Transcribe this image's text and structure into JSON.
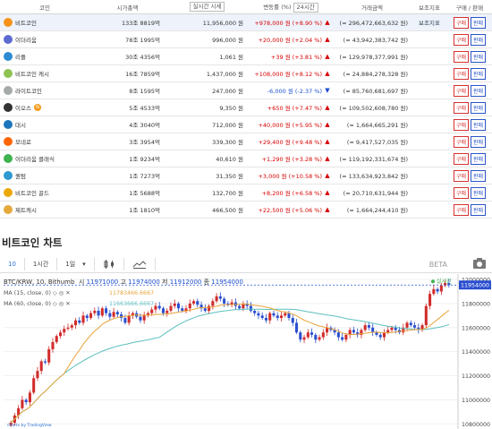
{
  "table": {
    "headers": {
      "coin": "코인",
      "cap": "시가총액",
      "price_sel": "실시간 시세",
      "change": "변동률 (%)",
      "period_sel": "24시간",
      "volume": "거래금액",
      "aux": "보조지표",
      "trade": "구매 / 판매"
    },
    "rows": [
      {
        "name": "비트코인",
        "cap": "133조 8819억",
        "price": "11,956,000 원",
        "change": "+978,000 원 (+8.90 %)",
        "dir": "up",
        "volume": "(≈ 296,472,663,632 원)",
        "aux": "보조지표",
        "icon_color": "#f7931a"
      },
      {
        "name": "이더리움",
        "cap": "78조 1995억",
        "price": "996,000 원",
        "change": "+20,000 원 (+2.04 %)",
        "dir": "up",
        "volume": "(≈ 43,942,383,742 원)",
        "aux": "",
        "icon_color": "#5b6bd1"
      },
      {
        "name": "리플",
        "cap": "30조 4356억",
        "price": "1,061 원",
        "change": "+39 원 (+3.81 %)",
        "dir": "up",
        "volume": "(≈ 129,978,377,991 원)",
        "aux": "",
        "icon_color": "#2d8bd2"
      },
      {
        "name": "비트코인 캐시",
        "cap": "16조 7859억",
        "price": "1,437,000 원",
        "change": "+108,000 원 (+8.12 %)",
        "dir": "up",
        "volume": "(≈ 24,884,278,328 원)",
        "aux": "",
        "icon_color": "#8dc351"
      },
      {
        "name": "라이트코인",
        "cap": "8조 1595억",
        "price": "247,000 원",
        "change": "-6,000 원 (-2.37 %)",
        "dir": "down",
        "volume": "(≈ 85,760,681,697 원)",
        "aux": "",
        "icon_color": "#a6a9aa"
      },
      {
        "name": "이오스",
        "cap": "5조 4533억",
        "price": "9,350 원",
        "change": "+650 원 (+7.47 %)",
        "dir": "up",
        "volume": "(≈ 109,502,608,780 원)",
        "aux": "",
        "icon_color": "#333333",
        "badge": "N"
      },
      {
        "name": "대시",
        "cap": "4조 3040억",
        "price": "712,000 원",
        "change": "+40,000 원 (+5.95 %)",
        "dir": "up",
        "volume": "(≈ 1,664,665,291 원)",
        "aux": "",
        "icon_color": "#1c75bc"
      },
      {
        "name": "모네로",
        "cap": "3조 3954억",
        "price": "339,300 원",
        "change": "+29,400 원 (+9.48 %)",
        "dir": "up",
        "volume": "(≈ 9,417,527,035 원)",
        "aux": "",
        "icon_color": "#ff6600"
      },
      {
        "name": "이더리움 클래식",
        "cap": "1조 9234억",
        "price": "40,610 원",
        "change": "+1,290 원 (+3.28 %)",
        "dir": "up",
        "volume": "(≈ 119,192,331,674 원)",
        "aux": "",
        "icon_color": "#3fb34f"
      },
      {
        "name": "퀀텀",
        "cap": "1조 7273억",
        "price": "31,350 원",
        "change": "+3,000 원 (+10.58 %)",
        "dir": "up",
        "volume": "(≈ 133,634,923,842 원)",
        "aux": "",
        "icon_color": "#2e9ad0"
      },
      {
        "name": "비트코인 골드",
        "cap": "1조 5688억",
        "price": "132,700 원",
        "change": "+8,200 원 (+6.58 %)",
        "dir": "up",
        "volume": "(≈ 20,710,631,944 원)",
        "aux": "",
        "icon_color": "#eba809"
      },
      {
        "name": "제트캐시",
        "cap": "1조 1810억",
        "price": "466,500 원",
        "change": "+22,500 원 (+5.06 %)",
        "dir": "up",
        "volume": "(≈ 1,664,244,410 원)",
        "aux": "",
        "icon_color": "#e5a93d"
      }
    ],
    "buy_label": "구매",
    "sell_label": "판매"
  },
  "chart_section": {
    "title": "비트코인 차트",
    "toolbar": {
      "interval": "10",
      "period1": "1시간",
      "period2": "1일"
    },
    "beta": "BETA",
    "legend": {
      "symbol": "BTC/KRW, 10, Bithumb",
      "o_label": "시",
      "o": "11971000",
      "h_label": "고",
      "h": "11974000",
      "l_label": "저",
      "l": "11912000",
      "c_label": "종",
      "c": "11954000",
      "ma15": "MA (15, close, 0)",
      "ma15_val": "11783466.6667",
      "ma60": "MA (60, close, 0)",
      "ma60_val": "11663666.6667",
      "live": "실시간"
    },
    "colors": {
      "up": "#d22b2b",
      "down": "#2b4fd0",
      "ma15": "#e8a33a",
      "ma60": "#5dbfbf"
    },
    "footer": "charts by TradingView"
  },
  "chart_data": {
    "type": "candlestick",
    "y_ticks": [
      "12000000",
      "11800000",
      "11600000",
      "11400000",
      "11200000",
      "11000000",
      "10800000"
    ],
    "ylim": [
      10780000,
      12030000
    ],
    "last_price": "11954000",
    "close_series": [
      10810000,
      10870000,
      10930000,
      11000000,
      10980000,
      11060000,
      11180000,
      11240000,
      11320000,
      11310000,
      11420000,
      11480000,
      11530000,
      11560000,
      11590000,
      11600000,
      11620000,
      11660000,
      11640000,
      11700000,
      11680000,
      11720000,
      11740000,
      11700000,
      11760000,
      11720000,
      11690000,
      11730000,
      11710000,
      11680000,
      11640000,
      11700000,
      11720000,
      11690000,
      11660000,
      11700000,
      11720000,
      11750000,
      11780000,
      11760000,
      11720000,
      11740000,
      11780000,
      11800000,
      11760000,
      11740000,
      11760000,
      11800000,
      11820000,
      11790000,
      11760000,
      11740000,
      11780000,
      11820000,
      11860000,
      11840000,
      11800000,
      11790000,
      11810000,
      11780000,
      11760000,
      11800000,
      11780000,
      11740000,
      11720000,
      11700000,
      11680000,
      11660000,
      11720000,
      11700000,
      11680000,
      11700000,
      11720000,
      11680000,
      11640000,
      11560000,
      11500000,
      11520000,
      11560000,
      11540000,
      11500000,
      11520000,
      11560000,
      11600000,
      11580000,
      11560000,
      11520000,
      11500000,
      11540000,
      11580000,
      11560000,
      11540000,
      11580000,
      11620000,
      11600000,
      11560000,
      11540000,
      11520000,
      11560000,
      11580000,
      11600000,
      11580000,
      11560000,
      11600000,
      11640000,
      11620000,
      11600000,
      11580000,
      11620000,
      11780000,
      11880000,
      11920000,
      11900000,
      11950000,
      11971000,
      11954000
    ]
  }
}
